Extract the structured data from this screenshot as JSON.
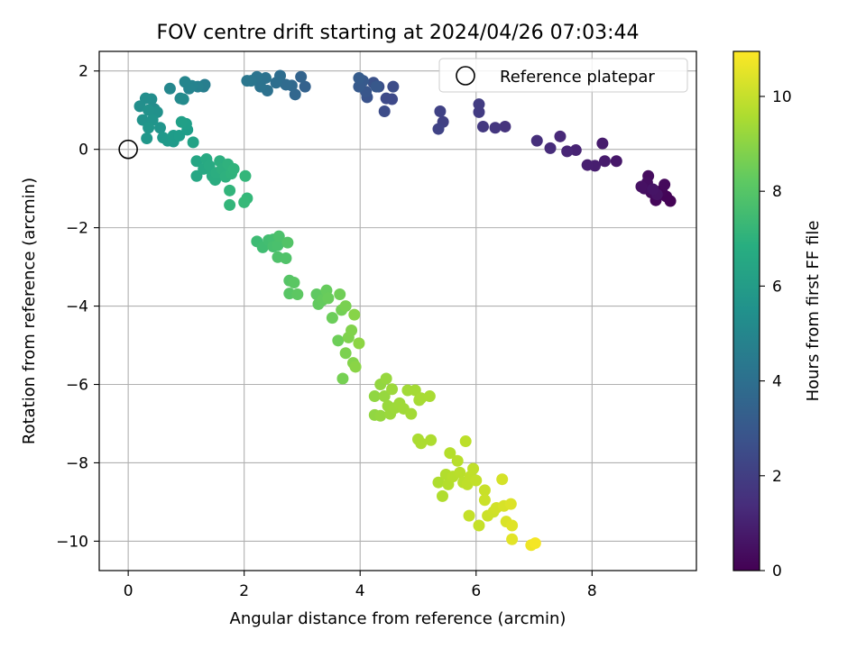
{
  "chart_data": {
    "type": "scatter",
    "title": "FOV centre drift starting at 2024/04/26 07:03:44",
    "xlabel": "Angular distance from reference (arcmin)",
    "ylabel": "Rotation from reference (arcmin)",
    "colorbar_label": "Hours from first FF file",
    "xlim": [
      -0.5,
      9.8
    ],
    "ylim": [
      -10.75,
      2.5
    ],
    "clim": [
      0,
      10.95
    ],
    "x_ticks": [
      0,
      2,
      4,
      6,
      8
    ],
    "y_ticks": [
      -10,
      -8,
      -6,
      -4,
      -2,
      0,
      2
    ],
    "colorbar_ticks": [
      0,
      2,
      4,
      6,
      8,
      10
    ],
    "grid": true,
    "colormap": "viridis",
    "legend": {
      "placement": "top-right",
      "label": "Reference platepar"
    },
    "reference_point": {
      "x": 0,
      "y": 0
    },
    "series": [
      {
        "points": [
          [
            9.35,
            -1.32,
            0.05
          ],
          [
            9.28,
            -1.2,
            0.1
          ],
          [
            9.2,
            -1.05,
            0.15
          ],
          [
            9.1,
            -1.3,
            0.2
          ],
          [
            9.25,
            -0.9,
            0.25
          ],
          [
            9.02,
            -1.1,
            0.3
          ],
          [
            8.97,
            -0.68,
            0.35
          ],
          [
            8.95,
            -0.85,
            0.4
          ],
          [
            8.9,
            -1.0,
            0.45
          ],
          [
            8.85,
            -0.95,
            0.5
          ],
          [
            9.12,
            -1.15,
            0.55
          ],
          [
            9.05,
            -1.02,
            0.6
          ],
          [
            8.42,
            -0.3,
            0.7
          ],
          [
            8.22,
            -0.3,
            0.8
          ],
          [
            8.18,
            0.15,
            0.85
          ],
          [
            8.05,
            -0.42,
            0.9
          ],
          [
            7.92,
            -0.4,
            0.95
          ],
          [
            7.72,
            -0.02,
            1.05
          ],
          [
            7.57,
            -0.05,
            1.15
          ],
          [
            7.45,
            0.33,
            1.25
          ],
          [
            7.28,
            0.03,
            1.35
          ],
          [
            7.05,
            0.22,
            1.45
          ],
          [
            6.5,
            0.58,
            1.6
          ],
          [
            6.33,
            0.55,
            1.7
          ],
          [
            6.12,
            0.58,
            1.8
          ],
          [
            6.05,
            0.95,
            1.9
          ],
          [
            6.05,
            1.15,
            1.95
          ],
          [
            5.43,
            0.7,
            2.1
          ],
          [
            5.38,
            0.97,
            2.15
          ],
          [
            5.35,
            0.52,
            2.2
          ],
          [
            4.55,
            1.28,
            2.4
          ],
          [
            4.45,
            1.3,
            2.45
          ],
          [
            4.42,
            0.97,
            2.5
          ],
          [
            4.57,
            1.6,
            2.55
          ],
          [
            4.32,
            1.6,
            2.65
          ],
          [
            4.23,
            1.7,
            2.75
          ],
          [
            4.12,
            1.33,
            2.8
          ],
          [
            4.1,
            1.47,
            2.9
          ],
          [
            4.28,
            1.6,
            3.0
          ],
          [
            4.05,
            1.75,
            3.05
          ],
          [
            3.98,
            1.6,
            3.1
          ],
          [
            3.98,
            1.82,
            3.15
          ],
          [
            3.05,
            1.6,
            3.4
          ],
          [
            2.98,
            1.85,
            3.5
          ],
          [
            2.88,
            1.4,
            3.6
          ],
          [
            2.82,
            1.63,
            3.7
          ],
          [
            2.72,
            1.65,
            3.8
          ],
          [
            2.62,
            1.88,
            3.9
          ],
          [
            2.55,
            1.7,
            3.95
          ],
          [
            2.4,
            1.5,
            4.05
          ],
          [
            2.37,
            1.82,
            4.1
          ],
          [
            2.28,
            1.6,
            4.15
          ],
          [
            2.22,
            1.85,
            4.2
          ],
          [
            2.12,
            1.75,
            4.3
          ],
          [
            2.05,
            1.75,
            4.35
          ],
          [
            1.32,
            1.65,
            4.6
          ],
          [
            1.3,
            1.6,
            4.7
          ],
          [
            1.2,
            1.6,
            4.8
          ],
          [
            1.1,
            1.62,
            4.9
          ],
          [
            1.05,
            1.55,
            4.95
          ],
          [
            0.98,
            1.72,
            5.0
          ],
          [
            0.72,
            1.55,
            5.1
          ],
          [
            0.9,
            1.3,
            5.2
          ],
          [
            0.95,
            1.28,
            5.25
          ],
          [
            0.45,
            1.03,
            5.3
          ],
          [
            0.4,
            1.28,
            5.35
          ],
          [
            0.3,
            1.3,
            5.4
          ],
          [
            0.2,
            1.1,
            5.45
          ],
          [
            0.5,
            0.95,
            5.5
          ],
          [
            0.35,
            1.0,
            5.55
          ],
          [
            0.25,
            0.75,
            5.6
          ],
          [
            0.42,
            0.75,
            5.65
          ],
          [
            0.55,
            0.55,
            5.7
          ],
          [
            0.35,
            0.55,
            5.75
          ],
          [
            0.32,
            0.28,
            5.8
          ],
          [
            0.6,
            0.3,
            5.85
          ],
          [
            0.68,
            0.22,
            5.9
          ],
          [
            0.78,
            0.2,
            5.95
          ],
          [
            0.78,
            0.35,
            6.0
          ],
          [
            0.88,
            0.35,
            6.05
          ],
          [
            1.02,
            0.5,
            6.1
          ],
          [
            1.0,
            0.65,
            6.15
          ],
          [
            0.92,
            0.7,
            6.2
          ],
          [
            1.12,
            0.18,
            6.3
          ],
          [
            1.18,
            -0.3,
            6.45
          ],
          [
            1.18,
            -0.68,
            6.5
          ],
          [
            1.3,
            -0.5,
            6.55
          ],
          [
            1.35,
            -0.25,
            6.6
          ],
          [
            1.4,
            -0.42,
            6.65
          ],
          [
            1.45,
            -0.68,
            6.7
          ],
          [
            1.5,
            -0.78,
            6.75
          ],
          [
            1.52,
            -0.6,
            6.8
          ],
          [
            1.58,
            -0.3,
            6.85
          ],
          [
            1.62,
            -0.5,
            6.9
          ],
          [
            1.68,
            -0.7,
            6.95
          ],
          [
            1.72,
            -0.38,
            7.0
          ],
          [
            1.78,
            -0.62,
            7.05
          ],
          [
            1.82,
            -0.5,
            7.1
          ],
          [
            1.75,
            -1.05,
            7.15
          ],
          [
            1.75,
            -1.42,
            7.2
          ],
          [
            2.02,
            -0.68,
            7.25
          ],
          [
            2.05,
            -1.25,
            7.3
          ],
          [
            2.0,
            -1.35,
            7.35
          ],
          [
            2.22,
            -2.35,
            7.5
          ],
          [
            2.32,
            -2.5,
            7.55
          ],
          [
            2.42,
            -2.32,
            7.6
          ],
          [
            2.5,
            -2.3,
            7.65
          ],
          [
            2.5,
            -2.48,
            7.7
          ],
          [
            2.58,
            -2.45,
            7.75
          ],
          [
            2.6,
            -2.22,
            7.8
          ],
          [
            2.58,
            -2.75,
            7.85
          ],
          [
            2.72,
            -2.78,
            7.9
          ],
          [
            2.75,
            -2.38,
            7.95
          ],
          [
            2.78,
            -3.35,
            8.0
          ],
          [
            2.78,
            -3.68,
            8.05
          ],
          [
            2.86,
            -3.4,
            8.1
          ],
          [
            2.92,
            -3.7,
            8.15
          ],
          [
            3.25,
            -3.7,
            8.2
          ],
          [
            3.28,
            -3.95,
            8.25
          ],
          [
            3.35,
            -3.85,
            8.3
          ],
          [
            3.42,
            -3.6,
            8.35
          ],
          [
            3.45,
            -3.8,
            8.4
          ],
          [
            3.52,
            -4.3,
            8.45
          ],
          [
            3.62,
            -4.88,
            8.5
          ],
          [
            3.65,
            -3.7,
            8.55
          ],
          [
            3.68,
            -4.1,
            8.6
          ],
          [
            3.7,
            -5.85,
            8.65
          ],
          [
            3.75,
            -4.0,
            8.7
          ],
          [
            3.75,
            -5.2,
            8.75
          ],
          [
            3.8,
            -4.8,
            8.8
          ],
          [
            3.85,
            -4.62,
            8.85
          ],
          [
            3.88,
            -5.45,
            8.9
          ],
          [
            3.9,
            -4.22,
            8.95
          ],
          [
            3.92,
            -5.55,
            9.0
          ],
          [
            3.98,
            -4.95,
            9.05
          ],
          [
            4.25,
            -6.3,
            9.1
          ],
          [
            4.25,
            -6.78,
            9.12
          ],
          [
            4.35,
            -6.0,
            9.15
          ],
          [
            4.35,
            -6.8,
            9.18
          ],
          [
            4.42,
            -6.3,
            9.2
          ],
          [
            4.45,
            -5.85,
            9.22
          ],
          [
            4.48,
            -6.55,
            9.25
          ],
          [
            4.52,
            -6.75,
            9.28
          ],
          [
            4.55,
            -6.12,
            9.3
          ],
          [
            4.6,
            -6.6,
            9.32
          ],
          [
            4.68,
            -6.48,
            9.35
          ],
          [
            4.75,
            -6.62,
            9.38
          ],
          [
            4.82,
            -6.15,
            9.4
          ],
          [
            4.88,
            -6.75,
            9.42
          ],
          [
            4.95,
            -6.15,
            9.45
          ],
          [
            5.02,
            -6.4,
            9.48
          ],
          [
            5.05,
            -6.35,
            9.5
          ],
          [
            5.2,
            -6.3,
            9.52
          ],
          [
            5.0,
            -7.4,
            9.55
          ],
          [
            5.05,
            -7.5,
            9.58
          ],
          [
            5.22,
            -7.42,
            9.6
          ],
          [
            5.35,
            -8.5,
            9.62
          ],
          [
            5.42,
            -8.85,
            9.65
          ],
          [
            5.48,
            -8.3,
            9.68
          ],
          [
            5.52,
            -8.55,
            9.7
          ],
          [
            5.55,
            -7.75,
            9.72
          ],
          [
            5.6,
            -8.35,
            9.75
          ],
          [
            5.68,
            -7.95,
            9.78
          ],
          [
            5.72,
            -8.25,
            9.8
          ],
          [
            5.78,
            -8.5,
            9.82
          ],
          [
            5.82,
            -7.45,
            9.85
          ],
          [
            5.85,
            -8.55,
            9.88
          ],
          [
            5.9,
            -8.35,
            9.9
          ],
          [
            5.95,
            -8.15,
            9.92
          ],
          [
            6.0,
            -8.45,
            9.95
          ],
          [
            5.88,
            -9.35,
            9.98
          ],
          [
            6.05,
            -9.6,
            10.0
          ],
          [
            6.15,
            -8.7,
            10.05
          ],
          [
            6.15,
            -8.95,
            10.08
          ],
          [
            6.2,
            -9.35,
            10.1
          ],
          [
            6.3,
            -9.25,
            10.15
          ],
          [
            6.35,
            -9.15,
            10.2
          ],
          [
            6.45,
            -8.42,
            10.25
          ],
          [
            6.48,
            -9.1,
            10.3
          ],
          [
            6.52,
            -9.5,
            10.35
          ],
          [
            6.6,
            -9.05,
            10.4
          ],
          [
            6.62,
            -9.6,
            10.45
          ],
          [
            6.62,
            -9.95,
            10.5
          ],
          [
            6.95,
            -10.1,
            10.7
          ],
          [
            7.02,
            -10.05,
            10.8
          ]
        ]
      }
    ]
  }
}
